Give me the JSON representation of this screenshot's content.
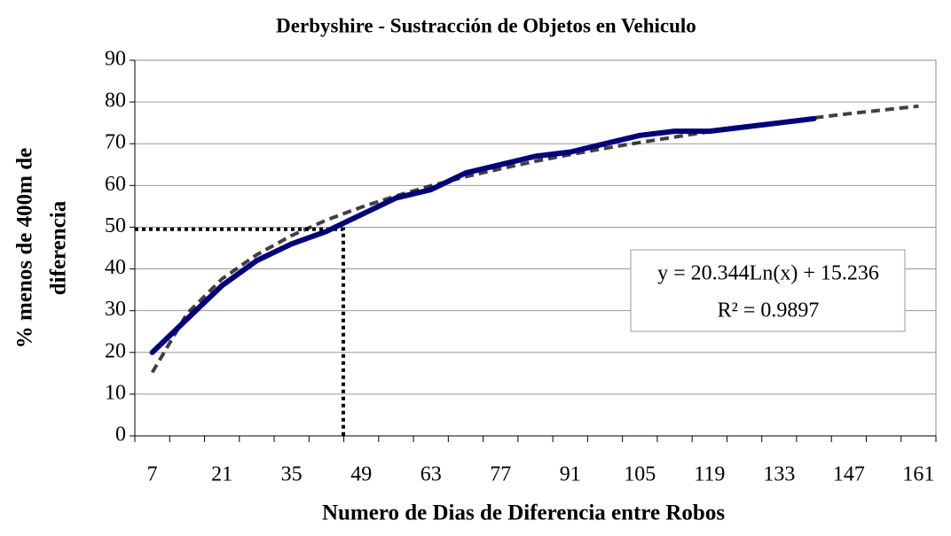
{
  "chart_data": {
    "type": "line",
    "title": "Derbyshire - Sustracción de Objetos en Vehiculo",
    "x_label": "Numero de Dias de Diferencia entre Robos",
    "y_label": [
      "% menos de 400m de",
      "diferencia"
    ],
    "categories": [
      7,
      null,
      21,
      null,
      35,
      null,
      49,
      null,
      63,
      null,
      77,
      null,
      91,
      null,
      105,
      null,
      119,
      null,
      133,
      null,
      147,
      null,
      161
    ],
    "series": [
      {
        "color": "#000080",
        "values": [
          20,
          28,
          36,
          42,
          46,
          49,
          53,
          57,
          59,
          63,
          65,
          67,
          68,
          70,
          72,
          73,
          73,
          74,
          75,
          76,
          null,
          null,
          null
        ]
      }
    ],
    "trendline": {
      "color": "#000000",
      "values": [
        15.2,
        29.3,
        37.6,
        43.4,
        48.0,
        51.7,
        54.8,
        57.5,
        59.9,
        62.1,
        64.0,
        65.8,
        67.4,
        68.9,
        70.3,
        71.6,
        72.9,
        74.0,
        75.1,
        76.2,
        77.2,
        78.1,
        79.0
      ]
    },
    "reference": {
      "x": 45.4,
      "y": 49.5
    },
    "annotation": [
      "y = 20.344Ln(x) + 15.236",
      "R² = 0.9897"
    ],
    "ylim": [
      0,
      90
    ],
    "yticks": [
      0,
      10,
      20,
      30,
      40,
      50,
      60,
      70,
      80,
      90
    ],
    "grid": true
  }
}
